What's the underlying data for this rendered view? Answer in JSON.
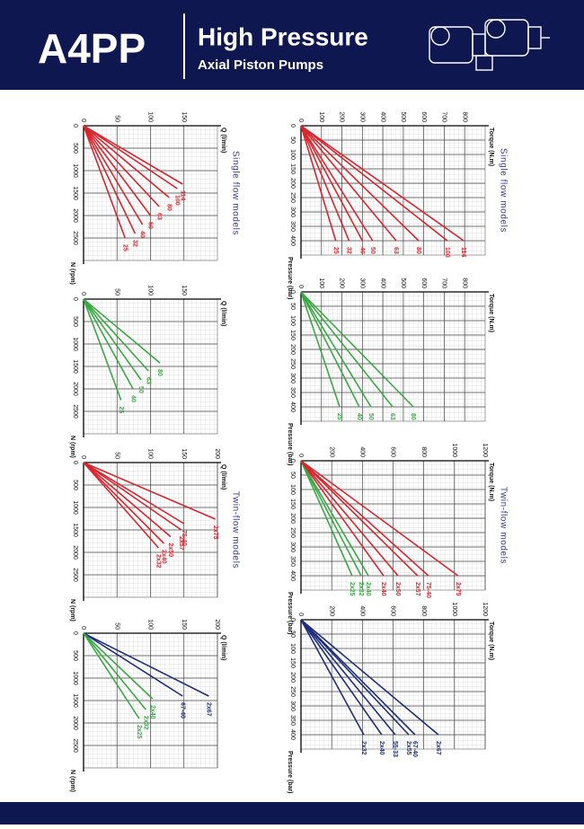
{
  "header": {
    "brand": "A4PP",
    "title": "High Pressure",
    "subtitle": "Axial Piston Pumps"
  },
  "chart_data": [
    {
      "type": "line",
      "title": "Single flow models",
      "xlabel": "N (rpm)",
      "ylabel": "Q (l/min)",
      "xlim": [
        0,
        3000
      ],
      "xticks": [
        0,
        500,
        1000,
        1500,
        2000,
        2500
      ],
      "ylim": [
        0,
        200
      ],
      "yticks": [
        0,
        50,
        100,
        150
      ],
      "grid": true,
      "series": [
        {
          "name": "114",
          "color": "#d7262e",
          "x": [
            0,
            1300
          ],
          "values": [
            0,
            148
          ]
        },
        {
          "name": "100",
          "color": "#d7262e",
          "x": [
            0,
            1400
          ],
          "values": [
            0,
            140
          ]
        },
        {
          "name": "80",
          "color": "#d7262e",
          "x": [
            0,
            1600
          ],
          "values": [
            0,
            128
          ]
        },
        {
          "name": "63",
          "color": "#d7262e",
          "x": [
            0,
            1800
          ],
          "values": [
            0,
            113
          ]
        },
        {
          "name": "50",
          "color": "#d7262e",
          "x": [
            0,
            2000
          ],
          "values": [
            0,
            100
          ]
        },
        {
          "name": "40",
          "color": "#d7262e",
          "x": [
            0,
            2200
          ],
          "values": [
            0,
            88
          ]
        },
        {
          "name": "32",
          "color": "#d7262e",
          "x": [
            0,
            2400
          ],
          "values": [
            0,
            77
          ]
        },
        {
          "name": "25",
          "color": "#d7262e",
          "x": [
            0,
            2500
          ],
          "values": [
            0,
            62
          ]
        }
      ]
    },
    {
      "type": "line",
      "title": "Single flow models",
      "xlabel": "Pressure (bar)",
      "ylabel": "Torque (N.m)",
      "xlim": [
        0,
        450
      ],
      "xticks": [
        0,
        50,
        100,
        150,
        200,
        250,
        300,
        350,
        400
      ],
      "ylim": [
        0,
        900
      ],
      "yticks": [
        0,
        100,
        200,
        300,
        400,
        500,
        600,
        700,
        800
      ],
      "grid": true,
      "series": [
        {
          "name": "114",
          "color": "#d7262e",
          "x": [
            0,
            400
          ],
          "values": [
            0,
            795
          ]
        },
        {
          "name": "100",
          "color": "#d7262e",
          "x": [
            0,
            400
          ],
          "values": [
            0,
            715
          ]
        },
        {
          "name": "80",
          "color": "#d7262e",
          "x": [
            0,
            400
          ],
          "values": [
            0,
            575
          ]
        },
        {
          "name": "63",
          "color": "#d7262e",
          "x": [
            0,
            400
          ],
          "values": [
            0,
            465
          ]
        },
        {
          "name": "50",
          "color": "#d7262e",
          "x": [
            0,
            400
          ],
          "values": [
            0,
            350
          ]
        },
        {
          "name": "40",
          "color": "#d7262e",
          "x": [
            0,
            400
          ],
          "values": [
            0,
            300
          ]
        },
        {
          "name": "32",
          "color": "#d7262e",
          "x": [
            0,
            400
          ],
          "values": [
            0,
            235
          ]
        },
        {
          "name": "25",
          "color": "#d7262e",
          "x": [
            0,
            400
          ],
          "values": [
            0,
            170
          ]
        }
      ]
    },
    {
      "type": "line",
      "xlabel": "N (rpm)",
      "ylabel": "Q (l/min)",
      "xlim": [
        0,
        3000
      ],
      "xticks": [
        0,
        500,
        1000,
        1500,
        2000,
        2500
      ],
      "ylim": [
        0,
        200
      ],
      "yticks": [
        0,
        50,
        100,
        150
      ],
      "grid": true,
      "series": [
        {
          "name": "80",
          "color": "#3aa845",
          "x": [
            0,
            1420
          ],
          "values": [
            0,
            114
          ]
        },
        {
          "name": "63",
          "color": "#3aa845",
          "x": [
            0,
            1600
          ],
          "values": [
            0,
            97
          ]
        },
        {
          "name": "50",
          "color": "#3aa845",
          "x": [
            0,
            1800
          ],
          "values": [
            0,
            86
          ]
        },
        {
          "name": "40",
          "color": "#3aa845",
          "x": [
            0,
            2000
          ],
          "values": [
            0,
            74
          ]
        },
        {
          "name": "25",
          "color": "#3aa845",
          "x": [
            0,
            2250
          ],
          "values": [
            0,
            56
          ]
        }
      ]
    },
    {
      "type": "line",
      "xlabel": "Pressure (bar)",
      "ylabel": "Torque (N.m)",
      "xlim": [
        0,
        450
      ],
      "xticks": [
        0,
        50,
        100,
        150,
        200,
        250,
        300,
        350,
        400
      ],
      "ylim": [
        0,
        900
      ],
      "yticks": [
        0,
        100,
        200,
        300,
        400,
        500,
        600,
        700,
        800
      ],
      "grid": true,
      "series": [
        {
          "name": "80",
          "color": "#3aa845",
          "x": [
            0,
            400
          ],
          "values": [
            0,
            549
          ]
        },
        {
          "name": "63",
          "color": "#3aa845",
          "x": [
            0,
            400
          ],
          "values": [
            0,
            448
          ]
        },
        {
          "name": "50",
          "color": "#3aa845",
          "x": [
            0,
            400
          ],
          "values": [
            0,
            342
          ]
        },
        {
          "name": "40",
          "color": "#3aa845",
          "x": [
            0,
            400
          ],
          "values": [
            0,
            285
          ]
        },
        {
          "name": "25",
          "color": "#3aa845",
          "x": [
            0,
            400
          ],
          "values": [
            0,
            189
          ]
        }
      ]
    },
    {
      "type": "line",
      "title": "Twin-flow models",
      "xlabel": "N (rpm)",
      "ylabel": "Q (l/min)",
      "xlim": [
        0,
        3000
      ],
      "xticks": [
        0,
        500,
        1000,
        1500,
        2000,
        2500
      ],
      "ylim": [
        0,
        200
      ],
      "yticks": [
        0,
        50,
        100,
        150,
        200
      ],
      "grid": true,
      "series": [
        {
          "name": "2x75",
          "color": "#d7262e",
          "x": [
            0,
            1260
          ],
          "values": [
            0,
            197
          ]
        },
        {
          "name": "75-40",
          "color": "#d7262e",
          "x": [
            0,
            1360
          ],
          "values": [
            0,
            150
          ]
        },
        {
          "name": "2x57",
          "color": "#d7262e",
          "x": [
            0,
            1500
          ],
          "values": [
            0,
            146
          ]
        },
        {
          "name": "2x50",
          "color": "#d7262e",
          "x": [
            0,
            1650
          ],
          "values": [
            0,
            130
          ]
        },
        {
          "name": "2x40",
          "color": "#d7262e",
          "x": [
            0,
            1800
          ],
          "values": [
            0,
            120
          ]
        },
        {
          "name": "2x32",
          "color": "#d7262e",
          "x": [
            0,
            1900
          ],
          "values": [
            0,
            112
          ]
        }
      ]
    },
    {
      "type": "line",
      "title": "Twin-flow models",
      "xlabel": "Pressure (bar)",
      "ylabel": "Torque (N.m)",
      "xlim": [
        0,
        450
      ],
      "xticks": [
        0,
        50,
        100,
        150,
        200,
        250,
        300,
        350,
        400
      ],
      "ylim": [
        0,
        1200
      ],
      "yticks": [
        0,
        200,
        400,
        600,
        800,
        1000,
        1200
      ],
      "grid": true,
      "series": [
        {
          "name": "2x25",
          "color": "#3aa845",
          "x": [
            0,
            400
          ],
          "values": [
            0,
            333
          ]
        },
        {
          "name": "2x32",
          "color": "#3aa845",
          "x": [
            0,
            400
          ],
          "values": [
            0,
            392
          ]
        },
        {
          "name": "2x40",
          "color": "#3aa845",
          "x": [
            0,
            400
          ],
          "values": [
            0,
            439
          ]
        },
        {
          "name": "2x40",
          "color": "#d7262e",
          "x": [
            0,
            400
          ],
          "values": [
            0,
            538
          ]
        },
        {
          "name": "2x50",
          "color": "#d7262e",
          "x": [
            0,
            400
          ],
          "values": [
            0,
            632
          ]
        },
        {
          "name": "2x57",
          "color": "#d7262e",
          "x": [
            0,
            400
          ],
          "values": [
            0,
            760
          ]
        },
        {
          "name": "75-40",
          "color": "#d7262e",
          "x": [
            0,
            400
          ],
          "values": [
            0,
            830
          ]
        },
        {
          "name": "2x75",
          "color": "#d7262e",
          "x": [
            0,
            400
          ],
          "values": [
            0,
            1023
          ]
        }
      ]
    },
    {
      "type": "line",
      "xlabel": "N (rpm)",
      "ylabel": "Q (l/min)",
      "xlim": [
        0,
        3000
      ],
      "xticks": [
        0,
        500,
        1000,
        1500,
        2000,
        2500
      ],
      "ylim": [
        0,
        200
      ],
      "yticks": [
        0,
        50,
        100,
        150,
        200
      ],
      "grid": true,
      "series": [
        {
          "name": "2x67",
          "color": "#1f2f7a",
          "x": [
            0,
            1400
          ],
          "values": [
            0,
            187
          ]
        },
        {
          "name": "67-40",
          "color": "#1f2f7a",
          "x": [
            0,
            1400
          ],
          "values": [
            0,
            148
          ]
        },
        {
          "name": "2x40",
          "color": "#3aa845",
          "x": [
            0,
            1460
          ],
          "values": [
            0,
            103
          ]
        },
        {
          "name": "2x32",
          "color": "#3aa845",
          "x": [
            0,
            1700
          ],
          "values": [
            0,
            93
          ]
        },
        {
          "name": "2x25",
          "color": "#3aa845",
          "x": [
            0,
            1900
          ],
          "values": [
            0,
            83
          ]
        }
      ]
    },
    {
      "type": "line",
      "xlabel": "Pressure (bar)",
      "ylabel": "Torque (N.m)",
      "xlim": [
        0,
        450
      ],
      "xticks": [
        0,
        50,
        100,
        150,
        200,
        250,
        300,
        350,
        400
      ],
      "ylim": [
        0,
        1200
      ],
      "yticks": [
        0,
        200,
        400,
        600,
        800,
        1000,
        1200
      ],
      "grid": true,
      "series": [
        {
          "name": "2x32",
          "color": "#1f2f7a",
          "x": [
            0,
            400
          ],
          "values": [
            0,
            409
          ]
        },
        {
          "name": "2x40",
          "color": "#1f2f7a",
          "x": [
            0,
            400
          ],
          "values": [
            0,
            526
          ]
        },
        {
          "name": "55-33",
          "color": "#1f2f7a",
          "x": [
            0,
            400
          ],
          "values": [
            0,
            614
          ]
        },
        {
          "name": "2x55",
          "color": "#1f2f7a",
          "x": [
            0,
            400
          ],
          "values": [
            0,
            702
          ]
        },
        {
          "name": "67-40",
          "color": "#1f2f7a",
          "x": [
            0,
            400
          ],
          "values": [
            0,
            743
          ]
        },
        {
          "name": "2x67",
          "color": "#1f2f7a",
          "x": [
            0,
            400
          ],
          "values": [
            0,
            895
          ]
        }
      ]
    }
  ]
}
